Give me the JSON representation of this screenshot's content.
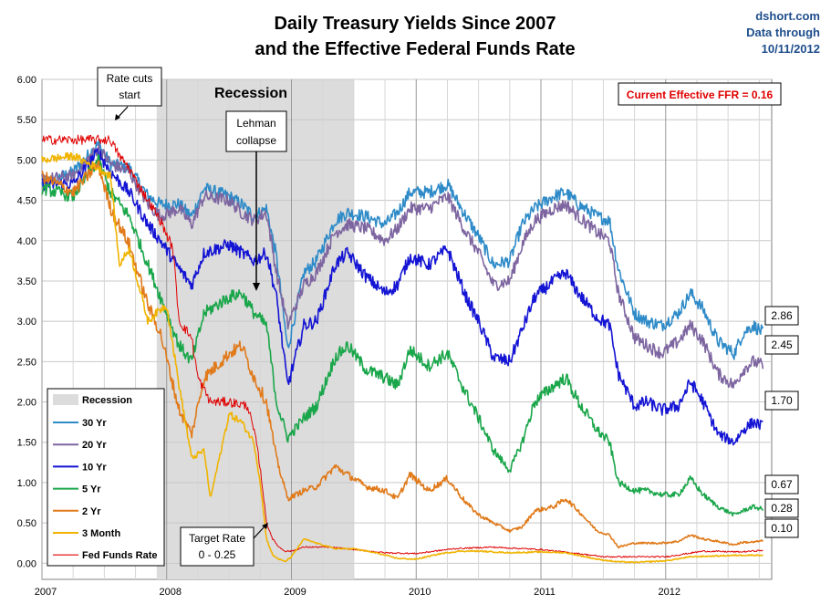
{
  "title_line1": "Daily Treasury Yields Since 2007",
  "title_line2": "and the Effective Federal Funds Rate",
  "credit": {
    "site": "dshort.com",
    "line2": "Data through",
    "date": "10/11/2012"
  },
  "ffr_box": "Current Effective FFR = 0.16",
  "annotations": {
    "recession": "Recession",
    "rate_cuts_1": "Rate cuts",
    "rate_cuts_2": "start",
    "lehman_1": "Lehman",
    "lehman_2": "collapse",
    "target_1": "Target Rate",
    "target_2": "0 - 0.25"
  },
  "legend": {
    "recession_label": "Recession",
    "items": [
      "30 Yr",
      "20 Yr",
      "10 Yr",
      "5 Yr",
      "2 Yr",
      "3 Month",
      "Fed Funds Rate"
    ]
  },
  "chart_data": {
    "type": "line",
    "title": "Daily Treasury Yields Since 2007 and the Effective Federal Funds Rate",
    "xlabel": "",
    "ylabel": "",
    "xlim": [
      2007.0,
      2012.85
    ],
    "ylim": [
      -0.2,
      6.0
    ],
    "y_ticks": [
      "0.00",
      "0.50",
      "1.00",
      "1.50",
      "2.00",
      "2.50",
      "3.00",
      "3.50",
      "4.00",
      "4.50",
      "5.00",
      "5.50",
      "6.00"
    ],
    "x_ticks": [
      "2007",
      "2008",
      "2009",
      "2010",
      "2011",
      "2012"
    ],
    "grid": true,
    "legend_position": "bottom-left",
    "recession_span": [
      2007.92,
      2009.5
    ],
    "series": [
      {
        "name": "30 Yr",
        "color": "#2e8bc8",
        "x": [
          2007.0,
          2007.25,
          2007.45,
          2007.55,
          2007.7,
          2007.85,
          2007.95,
          2008.1,
          2008.2,
          2008.3,
          2008.5,
          2008.6,
          2008.7,
          2008.8,
          2008.88,
          2008.97,
          2009.1,
          2009.2,
          2009.35,
          2009.45,
          2009.6,
          2009.75,
          2009.85,
          2009.95,
          2010.1,
          2010.25,
          2010.4,
          2010.5,
          2010.62,
          2010.75,
          2010.85,
          2010.95,
          2011.1,
          2011.2,
          2011.3,
          2011.45,
          2011.55,
          2011.62,
          2011.75,
          2011.85,
          2011.97,
          2012.1,
          2012.2,
          2012.3,
          2012.42,
          2012.55,
          2012.62,
          2012.7,
          2012.78
        ],
        "values": [
          4.7,
          4.85,
          5.2,
          4.95,
          4.9,
          4.55,
          4.45,
          4.45,
          4.3,
          4.65,
          4.55,
          4.45,
          4.3,
          4.4,
          3.8,
          2.65,
          3.6,
          3.75,
          4.25,
          4.35,
          4.3,
          4.2,
          4.35,
          4.6,
          4.6,
          4.7,
          4.3,
          4.05,
          3.7,
          3.75,
          4.2,
          4.4,
          4.55,
          4.6,
          4.45,
          4.3,
          4.25,
          3.65,
          3.1,
          3.0,
          2.95,
          3.1,
          3.35,
          3.15,
          2.75,
          2.6,
          2.85,
          2.95,
          2.86
        ]
      },
      {
        "name": "20 Yr",
        "color": "#7d65a0",
        "x": [
          2007.0,
          2007.25,
          2007.45,
          2007.55,
          2007.7,
          2007.85,
          2007.95,
          2008.1,
          2008.2,
          2008.3,
          2008.5,
          2008.6,
          2008.7,
          2008.8,
          2008.88,
          2008.97,
          2009.1,
          2009.2,
          2009.35,
          2009.45,
          2009.6,
          2009.75,
          2009.85,
          2009.95,
          2010.1,
          2010.25,
          2010.4,
          2010.5,
          2010.62,
          2010.75,
          2010.85,
          2010.95,
          2011.1,
          2011.2,
          2011.3,
          2011.45,
          2011.55,
          2011.62,
          2011.75,
          2011.85,
          2011.97,
          2012.1,
          2012.2,
          2012.3,
          2012.42,
          2012.55,
          2012.62,
          2012.7,
          2012.78
        ],
        "values": [
          4.75,
          4.8,
          5.15,
          4.95,
          4.85,
          4.45,
          4.3,
          4.4,
          4.2,
          4.55,
          4.5,
          4.35,
          4.25,
          4.35,
          3.6,
          2.95,
          3.45,
          3.6,
          4.1,
          4.2,
          4.15,
          4.0,
          4.15,
          4.4,
          4.4,
          4.55,
          4.1,
          3.85,
          3.45,
          3.5,
          3.95,
          4.25,
          4.4,
          4.45,
          4.3,
          4.1,
          4.0,
          3.35,
          2.8,
          2.7,
          2.6,
          2.75,
          2.95,
          2.75,
          2.35,
          2.2,
          2.4,
          2.5,
          2.45
        ]
      },
      {
        "name": "10 Yr",
        "color": "#1414d4",
        "x": [
          2007.0,
          2007.25,
          2007.45,
          2007.55,
          2007.7,
          2007.85,
          2007.95,
          2008.1,
          2008.2,
          2008.3,
          2008.5,
          2008.6,
          2008.7,
          2008.8,
          2008.88,
          2008.97,
          2009.1,
          2009.2,
          2009.35,
          2009.45,
          2009.6,
          2009.75,
          2009.85,
          2009.95,
          2010.1,
          2010.25,
          2010.4,
          2010.5,
          2010.62,
          2010.75,
          2010.85,
          2010.95,
          2011.1,
          2011.2,
          2011.3,
          2011.45,
          2011.55,
          2011.62,
          2011.75,
          2011.85,
          2011.97,
          2012.1,
          2012.2,
          2012.3,
          2012.42,
          2012.55,
          2012.62,
          2012.7,
          2012.78
        ],
        "values": [
          4.7,
          4.7,
          5.1,
          4.85,
          4.6,
          4.2,
          4.0,
          3.65,
          3.45,
          3.85,
          3.95,
          3.85,
          3.75,
          3.85,
          3.3,
          2.2,
          2.95,
          3.0,
          3.7,
          3.85,
          3.55,
          3.35,
          3.45,
          3.8,
          3.7,
          3.9,
          3.3,
          3.0,
          2.55,
          2.5,
          2.9,
          3.3,
          3.5,
          3.6,
          3.35,
          3.05,
          2.95,
          2.35,
          1.95,
          2.0,
          1.9,
          1.95,
          2.25,
          2.0,
          1.6,
          1.5,
          1.65,
          1.75,
          1.7
        ]
      },
      {
        "name": "5 Yr",
        "color": "#1aa64a",
        "x": [
          2007.0,
          2007.25,
          2007.45,
          2007.55,
          2007.7,
          2007.85,
          2007.95,
          2008.1,
          2008.2,
          2008.3,
          2008.5,
          2008.6,
          2008.7,
          2008.8,
          2008.88,
          2008.97,
          2009.1,
          2009.2,
          2009.35,
          2009.45,
          2009.6,
          2009.75,
          2009.85,
          2009.95,
          2010.1,
          2010.25,
          2010.4,
          2010.5,
          2010.62,
          2010.75,
          2010.85,
          2010.95,
          2011.1,
          2011.2,
          2011.3,
          2011.45,
          2011.55,
          2011.62,
          2011.75,
          2011.85,
          2011.97,
          2012.1,
          2012.2,
          2012.3,
          2012.42,
          2012.55,
          2012.62,
          2012.7,
          2012.78
        ],
        "values": [
          4.65,
          4.55,
          5.0,
          4.6,
          4.3,
          3.7,
          3.3,
          2.7,
          2.5,
          3.1,
          3.3,
          3.35,
          3.1,
          2.95,
          2.0,
          1.55,
          1.8,
          1.95,
          2.55,
          2.7,
          2.4,
          2.3,
          2.2,
          2.65,
          2.45,
          2.6,
          2.1,
          1.8,
          1.4,
          1.15,
          1.5,
          2.0,
          2.2,
          2.3,
          2.0,
          1.65,
          1.5,
          1.0,
          0.9,
          0.9,
          0.85,
          0.85,
          1.05,
          0.85,
          0.7,
          0.6,
          0.65,
          0.7,
          0.67
        ]
      },
      {
        "name": "2 Yr",
        "color": "#e07a1a",
        "x": [
          2007.0,
          2007.25,
          2007.45,
          2007.55,
          2007.7,
          2007.85,
          2007.95,
          2008.1,
          2008.2,
          2008.3,
          2008.5,
          2008.6,
          2008.7,
          2008.8,
          2008.88,
          2008.97,
          2009.1,
          2009.2,
          2009.35,
          2009.45,
          2009.6,
          2009.75,
          2009.85,
          2009.95,
          2010.1,
          2010.25,
          2010.4,
          2010.5,
          2010.62,
          2010.75,
          2010.85,
          2010.95,
          2011.1,
          2011.2,
          2011.3,
          2011.45,
          2011.55,
          2011.62,
          2011.75,
          2011.85,
          2011.97,
          2012.1,
          2012.2,
          2012.3,
          2012.42,
          2012.55,
          2012.62,
          2012.7,
          2012.78
        ],
        "values": [
          4.8,
          4.6,
          4.95,
          4.4,
          3.95,
          3.2,
          2.85,
          1.9,
          1.6,
          2.3,
          2.6,
          2.7,
          2.3,
          2.0,
          1.3,
          0.8,
          0.9,
          0.95,
          1.2,
          1.1,
          0.95,
          0.9,
          0.8,
          1.1,
          0.9,
          1.05,
          0.75,
          0.6,
          0.5,
          0.4,
          0.45,
          0.65,
          0.7,
          0.8,
          0.65,
          0.4,
          0.35,
          0.2,
          0.25,
          0.25,
          0.25,
          0.27,
          0.35,
          0.3,
          0.27,
          0.23,
          0.26,
          0.26,
          0.28
        ]
      },
      {
        "name": "3 Month",
        "color": "#f0b400",
        "x": [
          2007.0,
          2007.25,
          2007.45,
          2007.55,
          2007.62,
          2007.7,
          2007.85,
          2007.95,
          2008.0,
          2008.1,
          2008.2,
          2008.3,
          2008.35,
          2008.5,
          2008.6,
          2008.7,
          2008.75,
          2008.8,
          2008.85,
          2008.9,
          2008.95,
          2009.0,
          2009.1,
          2009.2,
          2009.35,
          2009.5,
          2009.7,
          2009.85,
          2010.0,
          2010.2,
          2010.35,
          2010.5,
          2010.75,
          2011.0,
          2011.2,
          2011.45,
          2011.6,
          2011.75,
          2012.0,
          2012.2,
          2012.4,
          2012.6,
          2012.78
        ],
        "values": [
          5.0,
          5.05,
          4.9,
          4.8,
          3.7,
          3.9,
          3.0,
          3.15,
          3.2,
          2.2,
          1.3,
          1.4,
          0.8,
          1.85,
          1.75,
          1.5,
          1.0,
          0.3,
          0.1,
          0.05,
          0.02,
          0.08,
          0.3,
          0.25,
          0.18,
          0.18,
          0.12,
          0.06,
          0.05,
          0.12,
          0.15,
          0.15,
          0.13,
          0.14,
          0.13,
          0.05,
          0.02,
          0.01,
          0.03,
          0.08,
          0.09,
          0.1,
          0.1
        ]
      },
      {
        "name": "Fed Funds Rate",
        "color": "#e00000",
        "x": [
          2007.0,
          2007.3,
          2007.55,
          2007.62,
          2007.7,
          2007.75,
          2007.85,
          2007.95,
          2008.05,
          2008.1,
          2008.2,
          2008.25,
          2008.35,
          2008.5,
          2008.65,
          2008.72,
          2008.76,
          2008.8,
          2008.85,
          2008.9,
          2008.95,
          2009.0,
          2009.1,
          2009.3,
          2009.5,
          2009.75,
          2010.0,
          2010.3,
          2010.6,
          2011.0,
          2011.3,
          2011.5,
          2011.75,
          2012.0,
          2012.3,
          2012.6,
          2012.78
        ],
        "values": [
          5.25,
          5.25,
          5.25,
          5.05,
          4.9,
          4.75,
          4.5,
          4.25,
          3.9,
          3.0,
          2.8,
          2.3,
          2.0,
          2.0,
          1.95,
          1.5,
          1.05,
          0.5,
          0.3,
          0.2,
          0.15,
          0.15,
          0.2,
          0.2,
          0.17,
          0.13,
          0.12,
          0.18,
          0.2,
          0.17,
          0.12,
          0.08,
          0.08,
          0.08,
          0.15,
          0.14,
          0.16
        ]
      }
    ],
    "end_labels": [
      "2.86",
      "2.45",
      "1.70",
      "0.67",
      "0.28",
      "0.10"
    ]
  }
}
